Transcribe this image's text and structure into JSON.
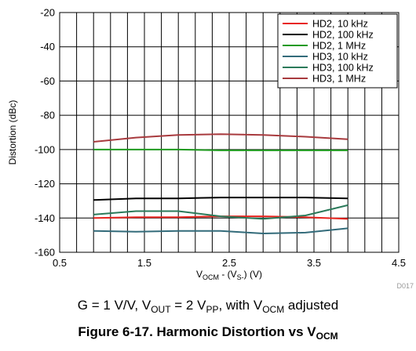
{
  "chart_data": {
    "type": "line",
    "title": "",
    "xlabel": "V_OCM - (V_S-) (V)",
    "ylabel": "Distortion (dBc)",
    "xlim": [
      0.5,
      4.5
    ],
    "ylim": [
      -160,
      -20
    ],
    "xticks": [
      "0.5",
      "1.5",
      "2.5",
      "3.5",
      "4.5"
    ],
    "yticks": [
      "-160",
      "-140",
      "-120",
      "-100",
      "-80",
      "-60",
      "-40",
      "-20"
    ],
    "grid": true,
    "legend_position": "top-right",
    "x": [
      0.9,
      1.4,
      1.9,
      2.4,
      2.9,
      3.4,
      3.9
    ],
    "series": [
      {
        "name": "HD2, 10 kHz",
        "color": "#e8251f",
        "values": [
          -140.0,
          -139.5,
          -139.5,
          -139.0,
          -139.0,
          -139.5,
          -140.5
        ]
      },
      {
        "name": "HD2, 100 kHz",
        "color": "#000000",
        "values": [
          -129.5,
          -128.5,
          -128.5,
          -128.0,
          -128.0,
          -128.0,
          -128.5
        ]
      },
      {
        "name": "HD2, 1 MHz",
        "color": "#1f9a1f",
        "values": [
          -100.0,
          -100.0,
          -100.0,
          -100.5,
          -100.5,
          -100.5,
          -100.5
        ]
      },
      {
        "name": "HD3, 10 kHz",
        "color": "#336b7a",
        "values": [
          -147.5,
          -148.0,
          -147.5,
          -147.5,
          -149.0,
          -148.5,
          -146.0
        ]
      },
      {
        "name": "HD3, 100 kHz",
        "color": "#2b7a5a",
        "values": [
          -138.0,
          -136.0,
          -136.0,
          -139.0,
          -140.5,
          -138.5,
          -132.5
        ]
      },
      {
        "name": "HD3, 1 MHz",
        "color": "#a83a3e",
        "values": [
          -95.5,
          -93.0,
          -91.5,
          -91.0,
          -91.5,
          -92.5,
          -94.0
        ]
      }
    ]
  },
  "figure_id": "D017",
  "conditions": {
    "prefix": "G = 1 V/V, V",
    "vout_sub": "OUT",
    "mid": " = 2 V",
    "vpp_sub": "PP",
    "tail": ", with V",
    "vocm_sub": "OCM",
    "end": " adjusted"
  },
  "caption": {
    "text": "Figure 6-17. Harmonic Distortion vs V",
    "sub": "OCM"
  },
  "axis_label_parts": {
    "x_v": "V",
    "x_sub1": "OCM",
    "x_mid": " - (V",
    "x_sub2": "S-",
    "x_end": ") (V)"
  }
}
